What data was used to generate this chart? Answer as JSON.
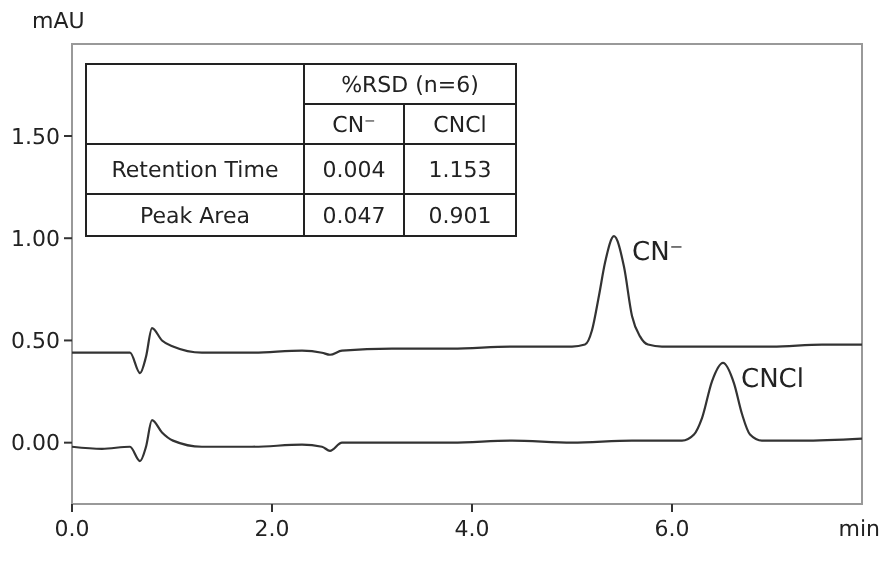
{
  "chart_data": {
    "type": "line",
    "xlabel": "min",
    "ylabel": "mAU",
    "xlim": [
      0,
      7.9
    ],
    "ylim": [
      -0.3,
      1.95
    ],
    "xticks": [
      {
        "value": 0,
        "label": "0.0"
      },
      {
        "value": 2,
        "label": "2.0"
      },
      {
        "value": 4,
        "label": "4.0"
      },
      {
        "value": 6,
        "label": "6.0"
      }
    ],
    "yticks": [
      {
        "value": 0,
        "label": "0.00"
      },
      {
        "value": 0.5,
        "label": "0.50"
      },
      {
        "value": 1,
        "label": "1.00"
      },
      {
        "value": 1.5,
        "label": "1.50"
      }
    ],
    "grid": false,
    "marker": "none",
    "line_style": "solid",
    "series": [
      {
        "name": "CN⁻",
        "color": "#333333",
        "x": [
          0,
          0.3,
          0.58,
          0.68,
          0.74,
          0.8,
          0.9,
          1.01,
          1.3,
          1.8,
          2.3,
          2.5,
          2.58,
          2.7,
          3.2,
          3.8,
          4.4,
          5.0,
          5.13,
          5.2,
          5.27,
          5.33,
          5.42,
          5.52,
          5.6,
          5.68,
          5.76,
          5.9,
          6.4,
          7.0,
          7.5,
          7.9
        ],
        "values": [
          0.44,
          0.44,
          0.44,
          0.34,
          0.42,
          0.56,
          0.5,
          0.47,
          0.44,
          0.44,
          0.45,
          0.44,
          0.43,
          0.45,
          0.46,
          0.46,
          0.47,
          0.47,
          0.48,
          0.55,
          0.72,
          0.88,
          1.01,
          0.86,
          0.62,
          0.52,
          0.48,
          0.47,
          0.47,
          0.47,
          0.48,
          0.48
        ]
      },
      {
        "name": "CNCl",
        "color": "#333333",
        "x": [
          0,
          0.3,
          0.58,
          0.68,
          0.74,
          0.8,
          0.9,
          1.01,
          1.3,
          1.8,
          2.3,
          2.5,
          2.58,
          2.7,
          3.2,
          3.8,
          4.4,
          5.0,
          5.6,
          6.1,
          6.22,
          6.3,
          6.4,
          6.51,
          6.62,
          6.7,
          6.78,
          6.9,
          7.3,
          7.9
        ],
        "values": [
          -0.02,
          -0.03,
          -0.02,
          -0.09,
          -0.02,
          0.11,
          0.05,
          0.01,
          -0.02,
          -0.02,
          -0.01,
          -0.02,
          -0.04,
          0.0,
          0.0,
          0.0,
          0.01,
          0.0,
          0.01,
          0.01,
          0.04,
          0.12,
          0.3,
          0.39,
          0.29,
          0.14,
          0.04,
          0.01,
          0.01,
          0.02
        ]
      }
    ],
    "annotations": [
      "%RSD (n=6)",
      "CN⁻",
      "CNCl",
      "Retention Time",
      "0.004",
      "1.153",
      "Peak Area",
      "0.047",
      "0.901"
    ]
  }
}
